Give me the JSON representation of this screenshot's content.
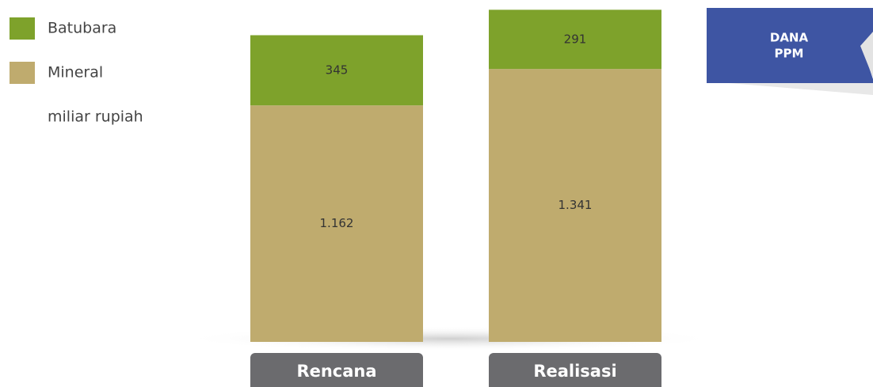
{
  "chart_data": {
    "type": "stacked-bar",
    "categories": [
      "Rencana",
      "Realisasi"
    ],
    "series": [
      {
        "name": "Batubara",
        "color": "#7ea22b",
        "values": [
          345,
          291
        ]
      },
      {
        "name": "Mineral",
        "color": "#bfab6e",
        "values": [
          1162,
          1341
        ],
        "value_labels": [
          "1.162",
          "1.341"
        ]
      }
    ],
    "unit": "miliar rupiah",
    "badge": [
      "DANA",
      "PPM"
    ],
    "ylim": [
      0,
      1680
    ]
  }
}
